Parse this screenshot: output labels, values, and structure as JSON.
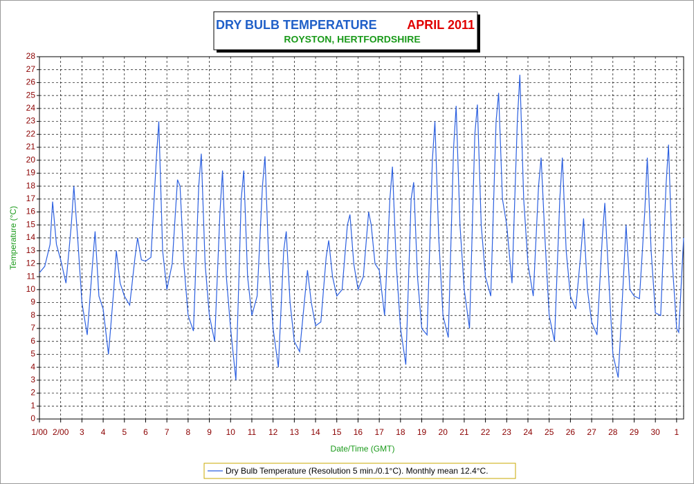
{
  "chart_data": {
    "type": "line",
    "title": "DRY BULB TEMPERATURE",
    "title_period": "APRIL 2011",
    "subtitle": "ROYSTON, HERTFORDSHIRE",
    "xlabel": "Date/Time (GMT)",
    "ylabel": "Temperature (°C)",
    "xlim": [
      1,
      31.33
    ],
    "ylim": [
      0,
      28
    ],
    "xticks": [
      {
        "value": 1,
        "label": "1/00"
      },
      {
        "value": 2,
        "label": "2/00"
      },
      3,
      4,
      5,
      6,
      7,
      8,
      9,
      10,
      11,
      12,
      13,
      14,
      15,
      16,
      17,
      18,
      19,
      20,
      21,
      22,
      23,
      24,
      25,
      26,
      27,
      28,
      29,
      30,
      {
        "value": 31,
        "label": "1"
      }
    ],
    "yticks": [
      0,
      1,
      2,
      3,
      4,
      5,
      6,
      7,
      8,
      9,
      10,
      11,
      12,
      13,
      14,
      15,
      16,
      17,
      18,
      19,
      20,
      21,
      22,
      23,
      24,
      25,
      26,
      27,
      28
    ],
    "grid": true,
    "x": [
      1,
      1.25,
      1.5,
      1.62,
      1.8,
      2,
      2.25,
      2.5,
      2.62,
      2.8,
      3,
      3.25,
      3.5,
      3.62,
      3.8,
      4,
      4.25,
      4.5,
      4.62,
      4.8,
      5,
      5.25,
      5.5,
      5.62,
      5.8,
      6,
      6.25,
      6.5,
      6.62,
      6.8,
      7,
      7.25,
      7.5,
      7.62,
      7.8,
      8,
      8.25,
      8.5,
      8.62,
      8.8,
      9,
      9.25,
      9.5,
      9.62,
      9.8,
      10,
      10.25,
      10.5,
      10.62,
      10.8,
      11,
      11.25,
      11.5,
      11.62,
      11.8,
      12,
      12.25,
      12.5,
      12.62,
      12.8,
      13,
      13.25,
      13.5,
      13.62,
      13.8,
      14,
      14.25,
      14.5,
      14.62,
      14.8,
      15,
      15.25,
      15.5,
      15.62,
      15.8,
      16,
      16.25,
      16.5,
      16.62,
      16.8,
      17,
      17.25,
      17.5,
      17.62,
      17.8,
      18,
      18.25,
      18.5,
      18.62,
      18.8,
      19,
      19.25,
      19.5,
      19.62,
      19.8,
      20,
      20.25,
      20.5,
      20.62,
      20.8,
      21,
      21.25,
      21.5,
      21.62,
      21.8,
      22,
      22.25,
      22.5,
      22.62,
      22.8,
      23,
      23.25,
      23.5,
      23.62,
      23.8,
      24,
      24.25,
      24.5,
      24.62,
      24.8,
      25,
      25.25,
      25.5,
      25.62,
      25.8,
      26,
      26.25,
      26.5,
      26.62,
      26.8,
      27,
      27.25,
      27.5,
      27.62,
      27.8,
      28,
      28.25,
      28.5,
      28.62,
      28.8,
      29,
      29.25,
      29.5,
      29.62,
      29.8,
      30,
      30.25,
      30.5,
      30.62,
      30.8,
      31,
      31.1,
      31.33
    ],
    "series": [
      {
        "name": "Dry Bulb Temperature (Resolution 5 min./0.1°C). Monthly mean 12.4°C.",
        "color": "#2b5fe0",
        "values": [
          11.3,
          11.8,
          13.5,
          16.8,
          13.5,
          12.3,
          10.5,
          15,
          18,
          14,
          9,
          6.5,
          12,
          14.5,
          9.5,
          8.5,
          5,
          10,
          13,
          10.5,
          9.5,
          8.8,
          12.5,
          14,
          12.3,
          12.2,
          12.5,
          20,
          23,
          13,
          10,
          12,
          18.5,
          18,
          12,
          8,
          6.8,
          18,
          20.5,
          12,
          8,
          6,
          16,
          19.2,
          11,
          7,
          3,
          17,
          19.2,
          11,
          8,
          9.5,
          18,
          20.3,
          12,
          7,
          4,
          13,
          14.5,
          9,
          6,
          5.2,
          9.5,
          11.5,
          9,
          7.2,
          7.5,
          12.5,
          13.8,
          11,
          9.5,
          10,
          15,
          15.8,
          12,
          10,
          11,
          16,
          15,
          12,
          11.5,
          8,
          17,
          19.5,
          12,
          7,
          4.2,
          17,
          18.3,
          11,
          7,
          6.5,
          20,
          23,
          14,
          8,
          6.3,
          21,
          24.2,
          15,
          10,
          7,
          22,
          24.3,
          15,
          11,
          9.5,
          23,
          25.2,
          17,
          15,
          10.5,
          23,
          26.6,
          17,
          12,
          9.5,
          18,
          20.2,
          14,
          8,
          6,
          17,
          20.2,
          13,
          9.5,
          8.5,
          13,
          15.5,
          10,
          7.5,
          6.5,
          14,
          16.7,
          11,
          5,
          3.2,
          11,
          15,
          10,
          9.5,
          9.3,
          16,
          20.2,
          13,
          8.2,
          8,
          18,
          21.2,
          12,
          7,
          6.7,
          14
        ]
      }
    ]
  }
}
